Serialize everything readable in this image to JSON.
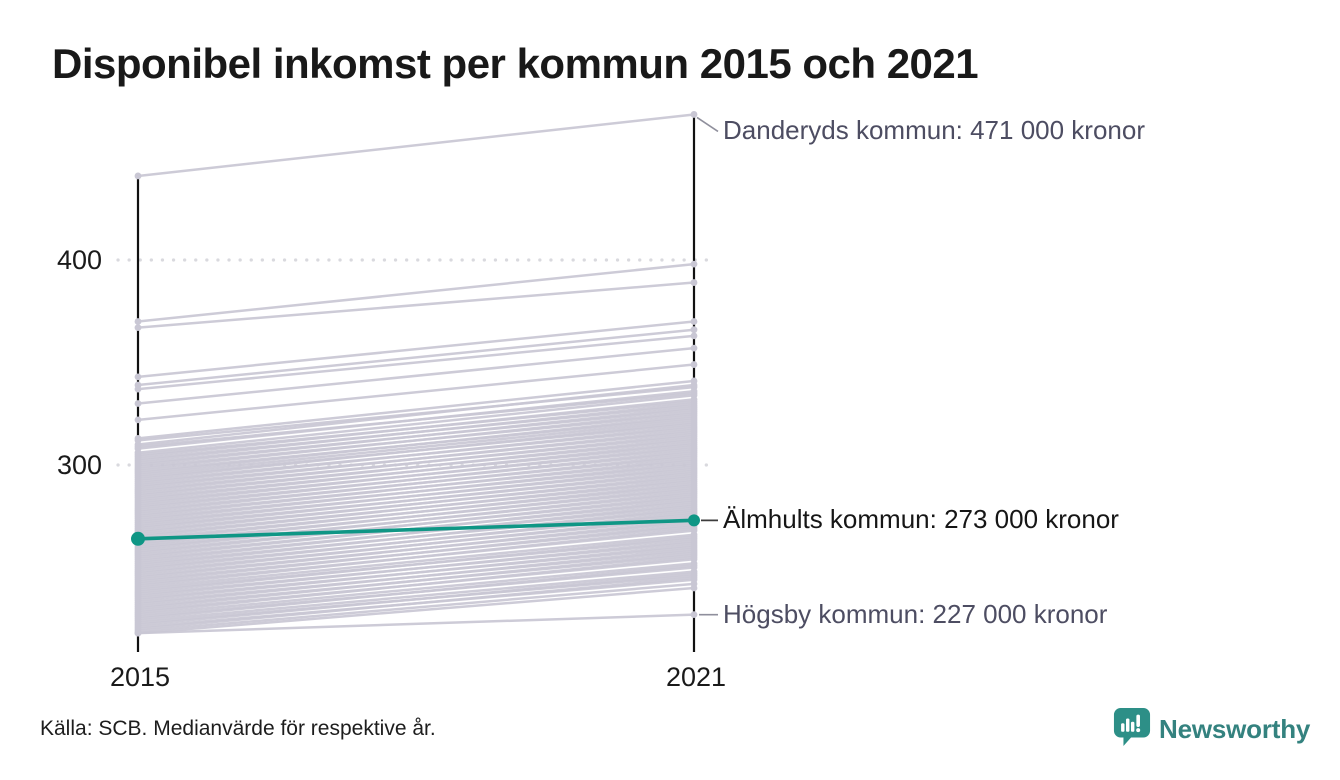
{
  "title": "Disponibel inkomst per kommun 2015 och 2021",
  "source_note": "Källa: SCB. Medianvärde för respektive år.",
  "brand": {
    "name": "Newsworthy",
    "icon": "newsworthy-speech-bubble-chart-icon",
    "text_color": "#34827f",
    "icon_color": "#2d8f87"
  },
  "colors": {
    "background": "#ffffff",
    "axis": "#111111",
    "grid": "#d9d9de",
    "line_gray": "#c9c7d4",
    "highlight_teal": "#0f9685",
    "annotation_gray": "#4d4d62",
    "annotation_black": "#161616",
    "leader": "#8f8f9c"
  },
  "chart_data": {
    "type": "line",
    "subtype": "slope",
    "x": [
      2015,
      2021
    ],
    "x_labels": [
      "2015",
      "2021"
    ],
    "y_ticks": [
      400,
      300
    ],
    "y_tick_labels": [
      "400",
      "300"
    ],
    "ylim": [
      212,
      478
    ],
    "grid": "dotted horizontal at 300 and 400",
    "legend_position": "none",
    "unit_hint": "tusen kronor",
    "annotations": [
      {
        "series": "Danderyds kommun",
        "label": "Danderyds kommun: 471 000 kronor",
        "value_2021": 471
      },
      {
        "series": "Älmhults kommun",
        "label": "Älmhults kommun: 273 000 kronor",
        "value_2021": 273
      },
      {
        "series": "Högsby kommun",
        "label": "Högsby kommun: 227 000 kronor",
        "value_2021": 227
      }
    ],
    "highlight_series": {
      "name": "Älmhults kommun",
      "values": [
        264,
        273
      ],
      "color": "#0f9685"
    },
    "named_series": [
      {
        "name": "Danderyds kommun",
        "values": [
          441,
          471
        ]
      },
      {
        "name": "Högsby kommun",
        "values": [
          218,
          227
        ]
      }
    ],
    "background_series": [
      [
        370,
        398
      ],
      [
        367,
        389
      ],
      [
        343,
        370
      ],
      [
        339,
        366
      ],
      [
        337,
        363
      ],
      [
        330,
        357
      ],
      [
        322,
        349
      ],
      [
        313,
        341
      ],
      [
        312,
        338
      ],
      [
        310,
        339
      ],
      [
        309,
        335
      ],
      [
        308,
        336
      ],
      [
        306,
        334
      ],
      [
        305,
        331
      ],
      [
        304,
        332
      ],
      [
        303,
        329
      ],
      [
        302,
        330
      ],
      [
        301,
        327
      ],
      [
        300,
        328
      ],
      [
        299,
        325
      ],
      [
        298,
        326
      ],
      [
        297,
        323
      ],
      [
        296,
        324
      ],
      [
        295,
        322
      ],
      [
        294,
        320
      ],
      [
        293,
        321
      ],
      [
        292,
        318
      ],
      [
        291,
        319
      ],
      [
        290,
        316
      ],
      [
        289,
        317
      ],
      [
        288,
        314
      ],
      [
        287,
        315
      ],
      [
        286,
        312
      ],
      [
        285,
        313
      ],
      [
        284,
        310
      ],
      [
        283,
        311
      ],
      [
        282,
        308
      ],
      [
        281,
        309
      ],
      [
        280,
        306
      ],
      [
        279,
        307
      ],
      [
        278,
        304
      ],
      [
        277,
        305
      ],
      [
        276,
        302
      ],
      [
        275,
        303
      ],
      [
        274,
        300
      ],
      [
        273,
        301
      ],
      [
        272,
        298
      ],
      [
        271,
        299
      ],
      [
        270,
        296
      ],
      [
        269,
        297
      ],
      [
        268,
        294
      ],
      [
        267,
        295
      ],
      [
        266,
        292
      ],
      [
        265,
        293
      ],
      [
        264,
        290
      ],
      [
        263,
        291
      ],
      [
        262,
        288
      ],
      [
        261,
        289
      ],
      [
        260,
        286
      ],
      [
        259,
        287
      ],
      [
        258,
        284
      ],
      [
        257,
        285
      ],
      [
        256,
        282
      ],
      [
        255,
        283
      ],
      [
        254,
        280
      ],
      [
        253,
        281
      ],
      [
        252,
        278
      ],
      [
        251,
        279
      ],
      [
        250,
        276
      ],
      [
        249,
        277
      ],
      [
        248,
        274
      ],
      [
        247,
        275
      ],
      [
        246,
        272
      ],
      [
        245,
        273
      ],
      [
        244,
        270
      ],
      [
        243,
        271
      ],
      [
        242,
        268
      ],
      [
        241,
        269
      ],
      [
        240,
        266
      ],
      [
        239,
        264
      ],
      [
        238,
        265
      ],
      [
        237,
        262
      ],
      [
        236,
        263
      ],
      [
        235,
        260
      ],
      [
        234,
        261
      ],
      [
        233,
        258
      ],
      [
        232,
        259
      ],
      [
        231,
        256
      ],
      [
        230,
        257
      ],
      [
        229,
        254
      ],
      [
        228,
        255
      ],
      [
        227,
        252
      ],
      [
        226,
        250
      ],
      [
        225,
        251
      ],
      [
        224,
        248
      ],
      [
        223,
        246
      ],
      [
        222,
        247
      ],
      [
        221,
        244
      ],
      [
        220,
        245
      ],
      [
        219,
        242
      ],
      [
        218,
        240
      ]
    ]
  }
}
